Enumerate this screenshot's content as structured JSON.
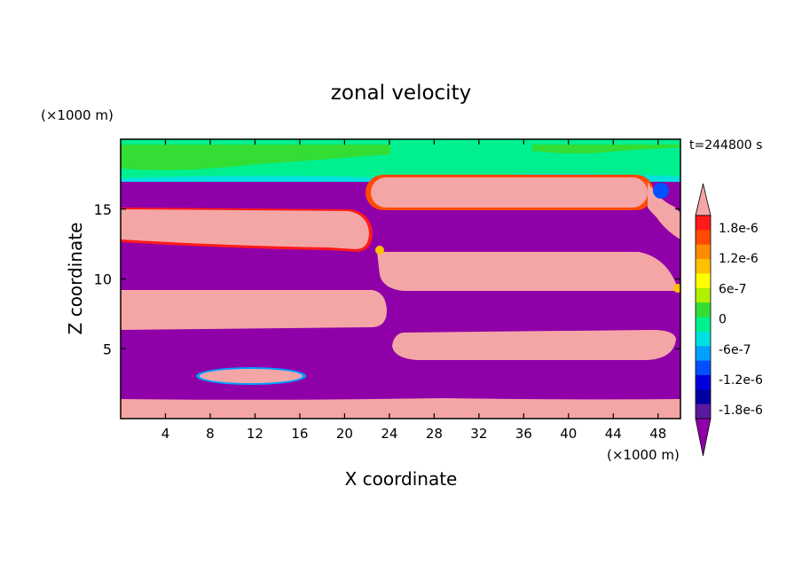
{
  "chart_data": {
    "type": "heatmap",
    "title": "zonal velocity",
    "xlabel": "X coordinate",
    "ylabel": "Z coordinate",
    "x_unit": "(×1000 m)",
    "y_unit": "(×1000 m)",
    "time_label": "t=244800 s",
    "xlim": [
      0,
      50
    ],
    "ylim": [
      0,
      20
    ],
    "x_ticks": [
      4,
      8,
      12,
      16,
      20,
      24,
      28,
      32,
      36,
      40,
      44,
      48
    ],
    "y_ticks": [
      5,
      10,
      15
    ],
    "colorbar": {
      "labels": [
        "1.8e-6",
        "1.2e-6",
        "6e-7",
        "0",
        "-6e-7",
        "-1.2e-6",
        "-1.8e-6"
      ],
      "colors_top_to_bottom": [
        "#f4a6a6",
        "#ff1a1a",
        "#ff4a00",
        "#ff8c00",
        "#ffc000",
        "#ffff00",
        "#b0f000",
        "#33dd33",
        "#00f090",
        "#00e0e0",
        "#00a0ff",
        "#0050ff",
        "#0000dd",
        "#0000a0",
        "#5a1aa0",
        "#9000a8"
      ]
    },
    "colors": {
      "positive": "#f4a6a6",
      "negative": "#9000a8",
      "near_zero": "#00f090",
      "small_positive": "#33dd33"
    }
  }
}
